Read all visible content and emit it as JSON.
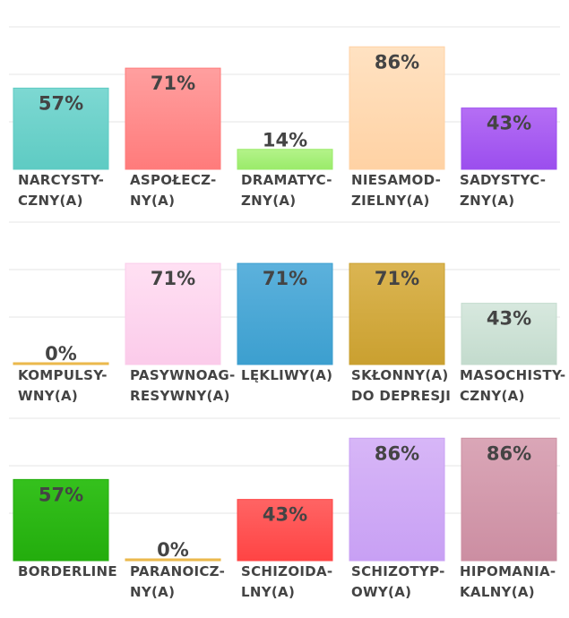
{
  "chart_data": [
    {
      "type": "bar",
      "ylim": [
        0,
        100
      ],
      "grid": true,
      "categories": [
        [
          "NARCYSTY-",
          "CZNY(A)"
        ],
        [
          "ASPOŁECZ-",
          "NY(A)"
        ],
        [
          "DRAMATYC-",
          "ZNY(A)"
        ],
        [
          "NIESAMOD-",
          "ZIELNY(A)"
        ],
        [
          "SADYSTYC-",
          "ZNY(A)"
        ]
      ],
      "values": [
        57,
        71,
        14,
        86,
        43
      ],
      "value_labels": [
        "57%",
        "71%",
        "14%",
        "86%",
        "43%"
      ],
      "colors": [
        [
          "#7dd8d2",
          "#5ecbc3"
        ],
        [
          "#ff9f9f",
          "#ff7b7b"
        ],
        [
          "#b4f38a",
          "#9aeb6a"
        ],
        [
          "#ffe2c2",
          "#ffd2a4"
        ],
        [
          "#b56ef4",
          "#9b4eee"
        ]
      ]
    },
    {
      "type": "bar",
      "ylim": [
        0,
        100
      ],
      "grid": true,
      "categories": [
        [
          "KOMPULSY-",
          "WNY(A)"
        ],
        [
          "PASYWNOAG-",
          "RESYWNY(A)"
        ],
        [
          "LĘKLIWY(A)"
        ],
        [
          "SKŁONNY(A)",
          "DO DEPRESJI"
        ],
        [
          "MASOCHISTY-",
          "CZNY(A)"
        ]
      ],
      "values": [
        0,
        71,
        71,
        71,
        43
      ],
      "value_labels": [
        "0%",
        "71%",
        "71%",
        "71%",
        "43%"
      ],
      "colors": [
        [
          "#f3c96a",
          "#e8b443"
        ],
        [
          "#ffe0f3",
          "#fbcbea"
        ],
        [
          "#5cb1dc",
          "#3c9fcf"
        ],
        [
          "#dbb552",
          "#caa030"
        ],
        [
          "#d7e8de",
          "#c3dbcd"
        ]
      ]
    },
    {
      "type": "bar",
      "ylim": [
        0,
        100
      ],
      "grid": true,
      "categories": [
        [
          "BORDERLINE"
        ],
        [
          "PARANOICZ-",
          "NY(A)"
        ],
        [
          "SCHIZOIDA-",
          "LNY(A)"
        ],
        [
          "SCHIZOTYP-",
          "OWY(A)"
        ],
        [
          "HIPOMANIA-",
          "KALNY(A)"
        ]
      ],
      "values": [
        57,
        0,
        43,
        86,
        86
      ],
      "value_labels": [
        "57%",
        "0%",
        "43%",
        "86%",
        "86%"
      ],
      "colors": [
        [
          "#35c11d",
          "#23ad0d"
        ],
        [
          "#f3c96a",
          "#e8b443"
        ],
        [
          "#ff6464",
          "#ff4444"
        ],
        [
          "#d7b6f7",
          "#c8a0f4"
        ],
        [
          "#daa6b7",
          "#cc8ea2"
        ]
      ]
    }
  ]
}
